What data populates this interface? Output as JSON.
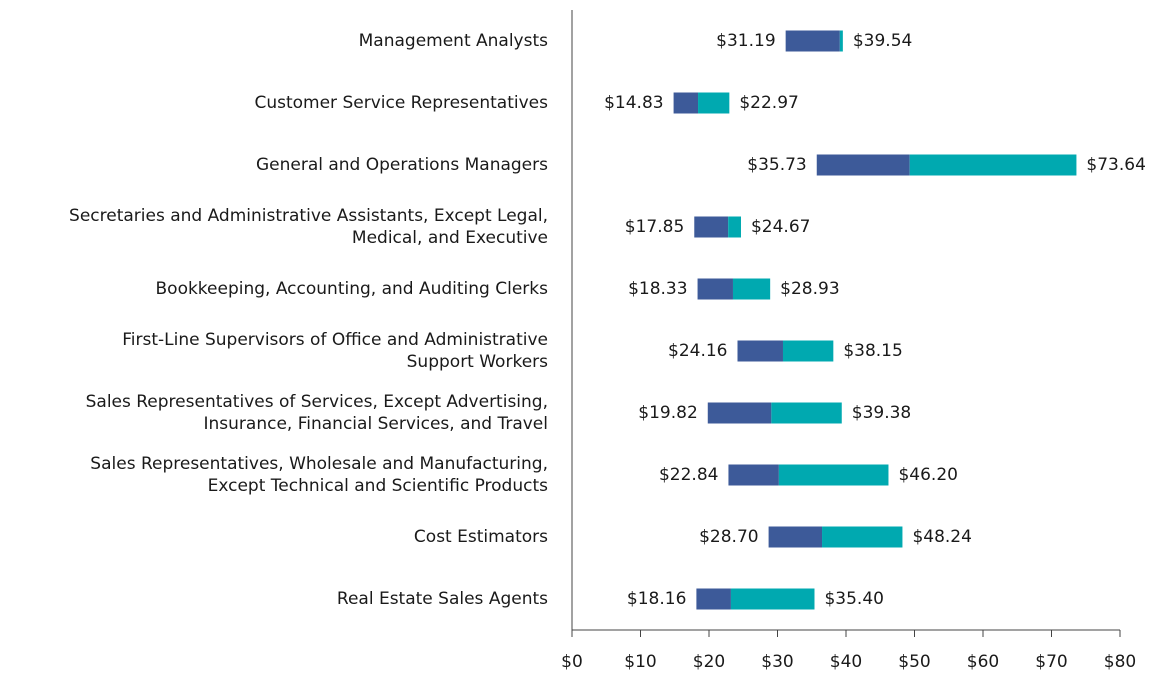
{
  "chart_data": {
    "type": "range_bar",
    "categories": [
      "Management Analysts",
      "Customer Service Representatives",
      "General and Operations Managers",
      "Secretaries and Administrative Assistants, Except Legal,\nMedical, and Executive",
      "Bookkeeping, Accounting, and Auditing Clerks",
      "First-Line Supervisors of Office and Administrative\nSupport Workers",
      "Sales Representatives of Services, Except Advertising,\nInsurance, Financial Services, and Travel",
      "Sales Representatives, Wholesale and Manufacturing,\nExcept Technical and Scientific Products",
      "Cost Estimators",
      "Real Estate Sales Agents"
    ],
    "low": [
      31.19,
      14.83,
      35.73,
      17.85,
      18.33,
      24.16,
      19.82,
      22.84,
      28.7,
      18.16
    ],
    "low_labels": [
      "$31.19",
      "$14.83",
      "$35.73",
      "$17.85",
      "$18.33",
      "$24.16",
      "$19.82",
      "$22.84",
      "$28.70",
      "$18.16"
    ],
    "mid": [
      39.1,
      18.4,
      49.3,
      22.8,
      23.5,
      30.8,
      29.1,
      30.2,
      36.5,
      23.2
    ],
    "high": [
      39.54,
      22.97,
      73.64,
      24.67,
      28.93,
      38.15,
      39.38,
      46.2,
      48.24,
      35.4
    ],
    "high_labels": [
      "$39.54",
      "$22.97",
      "$73.64",
      "$24.67",
      "$28.93",
      "$38.15",
      "$39.38",
      "$46.20",
      "$48.24",
      "$35.40"
    ],
    "colors": [
      "#3d5a99",
      "#00a9b0"
    ],
    "xlim": [
      0,
      80
    ],
    "xticks": [
      {
        "value": 0,
        "label": "$0"
      },
      {
        "value": 10,
        "label": "$10"
      },
      {
        "value": 20,
        "label": "$20"
      },
      {
        "value": 30,
        "label": "$30"
      },
      {
        "value": 40,
        "label": "$40"
      },
      {
        "value": 50,
        "label": "$50"
      },
      {
        "value": 60,
        "label": "$60"
      },
      {
        "value": 70,
        "label": "$70"
      },
      {
        "value": 80,
        "label": "$80"
      }
    ]
  }
}
